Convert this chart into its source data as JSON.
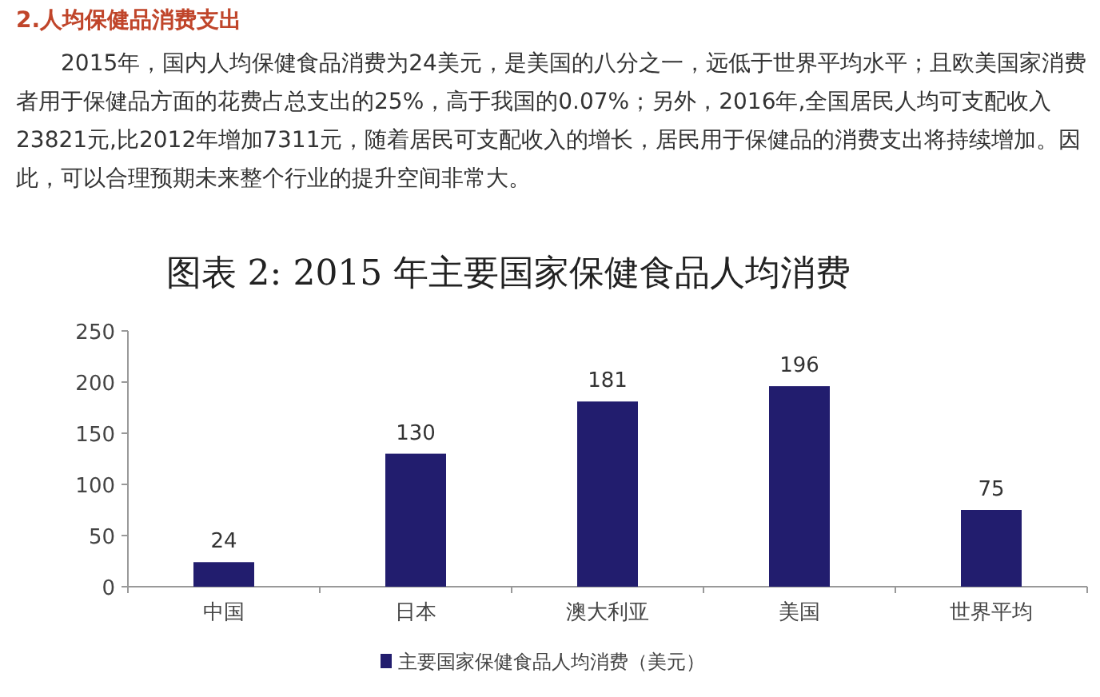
{
  "chart_data": {
    "type": "bar",
    "title": "2.人均保健品消费支出",
    "subtitle": "图表 2: 2015 年主要国家保健食品人均消费",
    "annotations": [
      "2015年，国内人均保健食品消费为24美元，是美国的八分之一，远低于世界平均水平；且欧美国家消费者用于保健品方面的花费占总支出的25%，高于我国的0.07%；另外，2016年,全国居民人均可支配收入23821元,比2012年增加7311元，随着居民可支配收入的增长，居民用于保健品的消费支出将持续增加。因此，可以合理预期未来整个行业的提升空间非常大。"
    ],
    "categories": [
      "中国",
      "日本",
      "澳大利亚",
      "美国",
      "世界平均"
    ],
    "series": [
      {
        "name": "主要国家保健食品人均消费（美元）",
        "color": "#221d6e",
        "values": [
          24,
          130,
          181,
          196,
          75
        ]
      }
    ],
    "ylim": [
      0,
      250
    ],
    "yticks": [
      0,
      50,
      100,
      150,
      200,
      250
    ],
    "data_labels": true,
    "legend": "bottom",
    "grid": false
  }
}
